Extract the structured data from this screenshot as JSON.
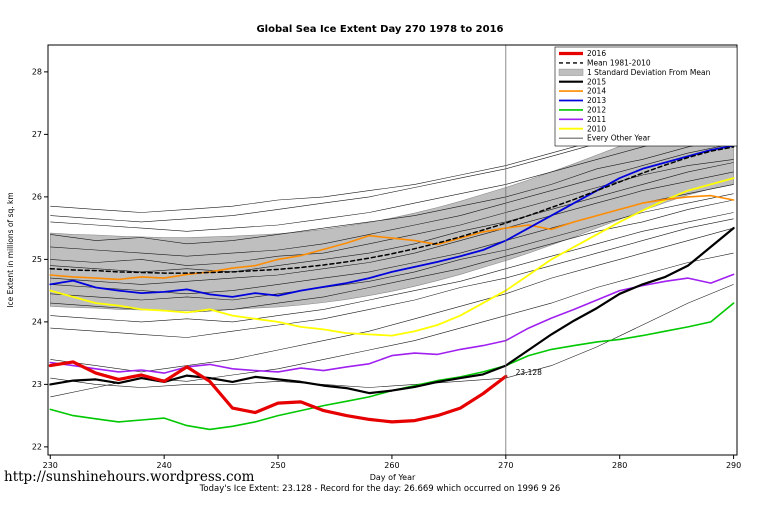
{
  "footer": {
    "url": "http://sunshinehours.wordpress.com",
    "caption": "Today's Ice Extent: 23.128  - Record for the day: 26.669 which occurred on 1996 9 26"
  },
  "chart_data": {
    "type": "line",
    "title": "Global Sea Ice Extent Day 270 1978 to 2016",
    "xlabel": "Day of Year",
    "ylabel": "Ice Extent in millions of sq. km",
    "xlim": [
      229.8,
      290.3
    ],
    "ylim": [
      21.87,
      28.43
    ],
    "xticks": [
      230,
      240,
      250,
      260,
      270,
      280,
      290
    ],
    "yticks": [
      22,
      23,
      24,
      25,
      26,
      27,
      28
    ],
    "grid": false,
    "vline": {
      "x": 270,
      "color": "#6e6e6e"
    },
    "annotation": {
      "text": "23.128",
      "x": 270.6,
      "y": 23.15,
      "color": "#ff0000"
    },
    "x_main": [
      230,
      232,
      234,
      236,
      238,
      240,
      242,
      244,
      246,
      248,
      250,
      252,
      254,
      256,
      258,
      260,
      262,
      264,
      266,
      268,
      270,
      272,
      274,
      276,
      278,
      280,
      282,
      284,
      286,
      288,
      290
    ],
    "band": {
      "label": "1 Standard Deviation From Mean",
      "color": "#bfbfbf",
      "upper": [
        25.42,
        25.4,
        25.39,
        25.37,
        25.36,
        25.35,
        25.35,
        25.36,
        25.37,
        25.39,
        25.41,
        25.44,
        25.48,
        25.53,
        25.59,
        25.66,
        25.74,
        25.83,
        25.93,
        26.04,
        26.15,
        26.27,
        26.4,
        26.53,
        26.67,
        26.81,
        26.95,
        27.08,
        27.18,
        27.26,
        27.32
      ],
      "lower": [
        24.25,
        24.23,
        24.22,
        24.2,
        24.19,
        24.18,
        24.18,
        24.19,
        24.2,
        24.22,
        24.24,
        24.27,
        24.31,
        24.36,
        24.42,
        24.49,
        24.57,
        24.66,
        24.76,
        24.87,
        24.98,
        25.1,
        25.23,
        25.36,
        25.5,
        25.64,
        25.78,
        25.91,
        26.03,
        26.13,
        26.2
      ]
    },
    "series": [
      {
        "name": "2010",
        "color": "#ffff00",
        "width": 1.8,
        "values": [
          24.5,
          24.4,
          24.3,
          24.26,
          24.2,
          24.18,
          24.15,
          24.2,
          24.1,
          24.05,
          24.0,
          23.92,
          23.88,
          23.82,
          23.8,
          23.78,
          23.85,
          23.95,
          24.1,
          24.3,
          24.5,
          24.75,
          25.0,
          25.2,
          25.4,
          25.6,
          25.78,
          25.95,
          26.1,
          26.2,
          26.3
        ]
      },
      {
        "name": "2011",
        "color": "#a020f0",
        "width": 1.6,
        "values": [
          23.35,
          23.3,
          23.25,
          23.2,
          23.23,
          23.18,
          23.28,
          23.32,
          23.25,
          23.22,
          23.2,
          23.26,
          23.22,
          23.28,
          23.33,
          23.46,
          23.5,
          23.48,
          23.56,
          23.62,
          23.7,
          23.9,
          24.06,
          24.2,
          24.35,
          24.5,
          24.58,
          24.65,
          24.7,
          24.62,
          24.76
        ]
      },
      {
        "name": "2012",
        "color": "#00c800",
        "width": 1.6,
        "values": [
          22.6,
          22.5,
          22.45,
          22.4,
          22.43,
          22.46,
          22.34,
          22.28,
          22.33,
          22.4,
          22.5,
          22.58,
          22.66,
          22.73,
          22.8,
          22.9,
          22.98,
          23.06,
          23.12,
          23.2,
          23.3,
          23.46,
          23.56,
          23.62,
          23.68,
          23.72,
          23.78,
          23.85,
          23.92,
          24.0,
          24.3
        ]
      },
      {
        "name": "2014",
        "color": "#ff8c00",
        "width": 1.6,
        "values": [
          24.75,
          24.72,
          24.7,
          24.68,
          24.72,
          24.7,
          24.76,
          24.8,
          24.86,
          24.9,
          25.0,
          25.06,
          25.16,
          25.26,
          25.38,
          25.34,
          25.3,
          25.24,
          25.34,
          25.44,
          25.5,
          25.55,
          25.48,
          25.6,
          25.7,
          25.8,
          25.9,
          25.96,
          26.0,
          26.02,
          25.95
        ]
      },
      {
        "name": "2013",
        "color": "#0000dd",
        "width": 1.8,
        "values": [
          24.6,
          24.66,
          24.55,
          24.5,
          24.46,
          24.48,
          24.52,
          24.44,
          24.4,
          24.46,
          24.42,
          24.5,
          24.56,
          24.62,
          24.7,
          24.8,
          24.88,
          24.96,
          25.05,
          25.15,
          25.3,
          25.5,
          25.7,
          25.9,
          26.1,
          26.3,
          26.45,
          26.55,
          26.65,
          26.75,
          26.82
        ]
      },
      {
        "name": "Mean 1981-2010",
        "color": "#000000",
        "width": 1.5,
        "dash": "4,3",
        "values": [
          24.85,
          24.83,
          24.82,
          24.8,
          24.79,
          24.78,
          24.78,
          24.79,
          24.8,
          24.82,
          24.84,
          24.87,
          24.91,
          24.96,
          25.02,
          25.09,
          25.17,
          25.26,
          25.36,
          25.47,
          25.58,
          25.7,
          25.83,
          25.96,
          26.1,
          26.24,
          26.38,
          26.51,
          26.63,
          26.73,
          26.8
        ]
      },
      {
        "name": "2015",
        "color": "#000000",
        "width": 2.2,
        "values": [
          23.0,
          23.06,
          23.08,
          23.02,
          23.1,
          23.04,
          23.14,
          23.1,
          23.04,
          23.12,
          23.08,
          23.04,
          22.98,
          22.94,
          22.86,
          22.9,
          22.96,
          23.04,
          23.1,
          23.16,
          23.3,
          23.55,
          23.8,
          24.02,
          24.22,
          24.45,
          24.6,
          24.72,
          24.9,
          25.2,
          25.5
        ]
      },
      {
        "name": "2016",
        "color": "#e60000",
        "width": 3.2,
        "values": [
          23.3,
          23.36,
          23.18,
          23.08,
          23.15,
          23.05,
          23.28,
          23.05,
          22.62,
          22.55,
          22.7,
          22.72,
          22.58,
          22.5,
          22.44,
          22.4,
          22.42,
          22.5,
          22.62,
          22.85,
          23.128
        ]
      }
    ],
    "background": {
      "label": "Every Other Year",
      "color": "#1a1a1a",
      "width": 0.6,
      "x": [
        230,
        234,
        238,
        242,
        246,
        250,
        254,
        258,
        262,
        266,
        270,
        274,
        278,
        282,
        286,
        290
      ],
      "series": [
        [
          25.6,
          25.55,
          25.5,
          25.45,
          25.5,
          25.55,
          25.65,
          25.75,
          25.9,
          26.05,
          26.2,
          26.4,
          26.6,
          26.8,
          27.0,
          27.2
        ],
        [
          25.4,
          25.3,
          25.35,
          25.25,
          25.3,
          25.4,
          25.5,
          25.6,
          25.7,
          25.85,
          26.0,
          26.2,
          26.45,
          26.6,
          26.8,
          26.95
        ],
        [
          25.2,
          25.15,
          25.1,
          25.05,
          25.1,
          25.15,
          25.25,
          25.4,
          25.55,
          25.7,
          25.9,
          26.1,
          26.3,
          26.5,
          26.7,
          26.85
        ],
        [
          25.0,
          24.95,
          25.0,
          24.9,
          24.95,
          25.05,
          25.1,
          25.25,
          25.4,
          25.55,
          25.75,
          25.95,
          26.15,
          26.35,
          26.5,
          26.6
        ],
        [
          24.9,
          24.85,
          24.8,
          24.85,
          24.8,
          24.9,
          25.0,
          25.1,
          25.25,
          25.45,
          25.6,
          25.8,
          26.0,
          26.2,
          26.4,
          26.55
        ],
        [
          24.7,
          24.65,
          24.6,
          24.65,
          24.7,
          24.75,
          24.85,
          24.95,
          25.1,
          25.3,
          25.5,
          25.7,
          25.9,
          26.1,
          26.25,
          26.4
        ],
        [
          24.6,
          24.55,
          24.5,
          24.45,
          24.5,
          24.6,
          24.7,
          24.8,
          24.95,
          25.1,
          25.3,
          25.5,
          25.7,
          25.9,
          26.05,
          26.2
        ],
        [
          24.45,
          24.4,
          24.35,
          24.4,
          24.35,
          24.45,
          24.55,
          24.65,
          24.8,
          25.0,
          25.15,
          25.35,
          25.55,
          25.75,
          25.9,
          26.05
        ],
        [
          24.3,
          24.25,
          24.2,
          24.15,
          24.2,
          24.3,
          24.4,
          24.55,
          24.7,
          24.85,
          25.05,
          25.25,
          25.45,
          25.6,
          25.8,
          25.95
        ],
        [
          25.85,
          25.8,
          25.75,
          25.8,
          25.85,
          25.95,
          26.0,
          26.1,
          26.2,
          26.35,
          26.5,
          26.7,
          26.9,
          27.1,
          27.3,
          27.45
        ],
        [
          24.1,
          24.05,
          24.0,
          24.05,
          24.0,
          24.1,
          24.2,
          24.35,
          24.5,
          24.65,
          24.85,
          25.05,
          25.25,
          25.45,
          25.6,
          25.75
        ],
        [
          23.9,
          23.85,
          23.8,
          23.75,
          23.85,
          23.95,
          24.05,
          24.2,
          24.35,
          24.55,
          24.7,
          24.9,
          25.1,
          25.3,
          25.5,
          25.65
        ],
        [
          23.4,
          23.3,
          23.2,
          23.3,
          23.4,
          23.55,
          23.7,
          23.85,
          24.05,
          24.25,
          24.45,
          24.7,
          24.9,
          25.1,
          25.3,
          25.5
        ],
        [
          22.8,
          22.95,
          23.1,
          23.05,
          23.15,
          23.25,
          23.4,
          23.55,
          23.7,
          23.9,
          24.1,
          24.3,
          24.55,
          24.75,
          24.95,
          25.1
        ],
        [
          25.7,
          25.65,
          25.6,
          25.65,
          25.7,
          25.8,
          25.9,
          26.0,
          26.15,
          26.3,
          26.45,
          26.65,
          26.85,
          27.0,
          27.15,
          27.25
        ],
        [
          23.1,
          23.0,
          22.95,
          23.0,
          23.0,
          23.05,
          23.0,
          22.95,
          23.0,
          23.05,
          23.1,
          23.3,
          23.6,
          23.95,
          24.3,
          24.6
        ]
      ]
    },
    "legend": {
      "position": "top-right",
      "entries": [
        {
          "label": "2016",
          "swatch": "line",
          "color": "#e60000",
          "width": 3.2
        },
        {
          "label": "Mean 1981-2010",
          "swatch": "line",
          "color": "#000000",
          "width": 1.4,
          "dash": "4,3"
        },
        {
          "label": "1 Standard Deviation From Mean",
          "swatch": "band",
          "color": "#bfbfbf"
        },
        {
          "label": "2015",
          "swatch": "line",
          "color": "#000000",
          "width": 2.2
        },
        {
          "label": "2014",
          "swatch": "line",
          "color": "#ff8c00",
          "width": 1.6
        },
        {
          "label": "2013",
          "swatch": "line",
          "color": "#0000dd",
          "width": 1.8
        },
        {
          "label": "2012",
          "swatch": "line",
          "color": "#00c800",
          "width": 1.6
        },
        {
          "label": "2011",
          "swatch": "line",
          "color": "#a020f0",
          "width": 1.6
        },
        {
          "label": "2010",
          "swatch": "line",
          "color": "#ffff00",
          "width": 1.8
        },
        {
          "label": "Every Other Year",
          "swatch": "line",
          "color": "#1a1a1a",
          "width": 0.7
        }
      ]
    }
  }
}
